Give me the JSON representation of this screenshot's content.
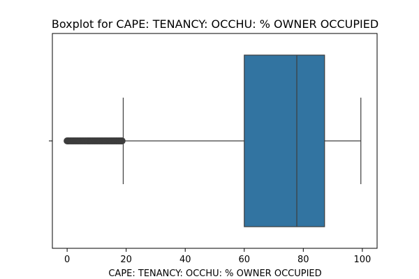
{
  "chart_data": {
    "type": "boxplot",
    "title": "Boxplot for CAPE: TENANCY: OCCHU: % OWNER OCCUPIED",
    "xlabel": "CAPE: TENANCY: OCCHU: % OWNER OCCUPIED",
    "ylabel": "",
    "xlim": [
      -5,
      105
    ],
    "xticks": [
      0,
      20,
      40,
      60,
      80,
      100
    ],
    "orientation": "horizontal",
    "grid": false,
    "box": {
      "whisker_low": 19,
      "q1": 60,
      "median": 77.8,
      "q3": 87.2,
      "whisker_high": 99.5,
      "color": "#3274a1",
      "line_color": "#3d3d3d"
    },
    "outliers": [
      0,
      0.3,
      0.6,
      1,
      1.4,
      1.8,
      2.2,
      2.6,
      3,
      3.4,
      3.8,
      4.2,
      4.6,
      5,
      5.4,
      5.8,
      6.2,
      6.6,
      7,
      7.4,
      7.8,
      8.2,
      8.6,
      9,
      9.4,
      9.8,
      10.2,
      10.6,
      11,
      11.4,
      11.8,
      12.2,
      12.6,
      13,
      13.4,
      13.8,
      14.2,
      14.6,
      15,
      15.4,
      15.8,
      16.2,
      16.6,
      17,
      17.4,
      17.8,
      18.2,
      18.6
    ]
  }
}
